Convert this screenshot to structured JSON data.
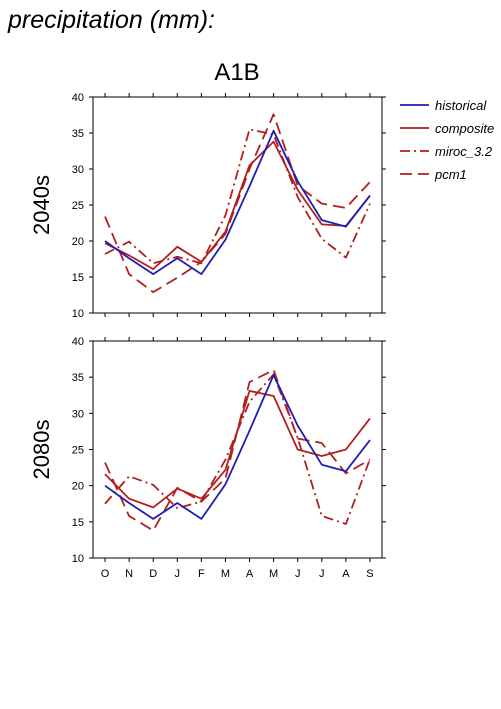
{
  "title": "precipitation (mm):",
  "panel_title": "A1B",
  "colors": {
    "historical": "#1f1fb4",
    "model": "#b11f1f"
  },
  "chart_data": [
    {
      "type": "line",
      "row_label": "2040s",
      "categories": [
        "O",
        "N",
        "D",
        "J",
        "F",
        "M",
        "A",
        "M",
        "J",
        "J",
        "A",
        "S"
      ],
      "ylim": [
        10,
        40
      ],
      "yticks": [
        10,
        15,
        20,
        25,
        30,
        35,
        40
      ],
      "series": [
        {
          "name": "historical",
          "style": "solid",
          "color": "#1f1fb4",
          "values": [
            20.0,
            17.6,
            15.4,
            17.6,
            15.4,
            20.2,
            27.6,
            35.3,
            28.3,
            22.9,
            22.0,
            26.3
          ]
        },
        {
          "name": "composite",
          "style": "solid",
          "color": "#b11f1f",
          "values": [
            19.7,
            18.0,
            16.1,
            19.2,
            17.1,
            21.3,
            30.5,
            33.8,
            27.1,
            22.3,
            22.1,
            26.3
          ]
        },
        {
          "name": "miroc_3.2",
          "style": "dashdot",
          "color": "#b11f1f",
          "values": [
            18.2,
            19.9,
            16.9,
            17.8,
            16.9,
            23.6,
            35.5,
            34.8,
            26.1,
            20.3,
            17.7,
            25.2
          ]
        },
        {
          "name": "pcm1",
          "style": "dash",
          "color": "#b11f1f",
          "values": [
            23.4,
            15.4,
            12.9,
            14.9,
            17.1,
            21.0,
            30.0,
            37.6,
            27.7,
            25.2,
            24.6,
            28.2
          ]
        }
      ]
    },
    {
      "type": "line",
      "row_label": "2080s",
      "categories": [
        "O",
        "N",
        "D",
        "J",
        "F",
        "M",
        "A",
        "M",
        "J",
        "J",
        "A",
        "S"
      ],
      "ylim": [
        10,
        40
      ],
      "yticks": [
        10,
        15,
        20,
        25,
        30,
        35,
        40
      ],
      "series": [
        {
          "name": "historical",
          "style": "solid",
          "color": "#1f1fb4",
          "values": [
            20.0,
            17.6,
            15.4,
            17.6,
            15.4,
            20.2,
            27.6,
            35.3,
            28.3,
            22.9,
            22.0,
            26.3
          ]
        },
        {
          "name": "composite",
          "style": "solid",
          "color": "#b11f1f",
          "values": [
            21.6,
            18.2,
            17.0,
            19.6,
            18.2,
            22.2,
            33.1,
            32.4,
            25.0,
            24.1,
            25.0,
            29.3
          ]
        },
        {
          "name": "miroc_3.2",
          "style": "dashdot",
          "color": "#b11f1f",
          "values": [
            17.5,
            21.3,
            20.1,
            16.9,
            17.8,
            23.6,
            31.6,
            35.4,
            26.6,
            15.8,
            14.7,
            23.7
          ]
        },
        {
          "name": "pcm1",
          "style": "dash",
          "color": "#b11f1f",
          "values": [
            23.2,
            15.8,
            13.8,
            19.7,
            17.8,
            21.0,
            34.3,
            36.0,
            26.5,
            25.9,
            21.7,
            23.6
          ]
        }
      ]
    }
  ],
  "legend": [
    "historical",
    "composite",
    "miroc_3.2",
    "pcm1"
  ]
}
